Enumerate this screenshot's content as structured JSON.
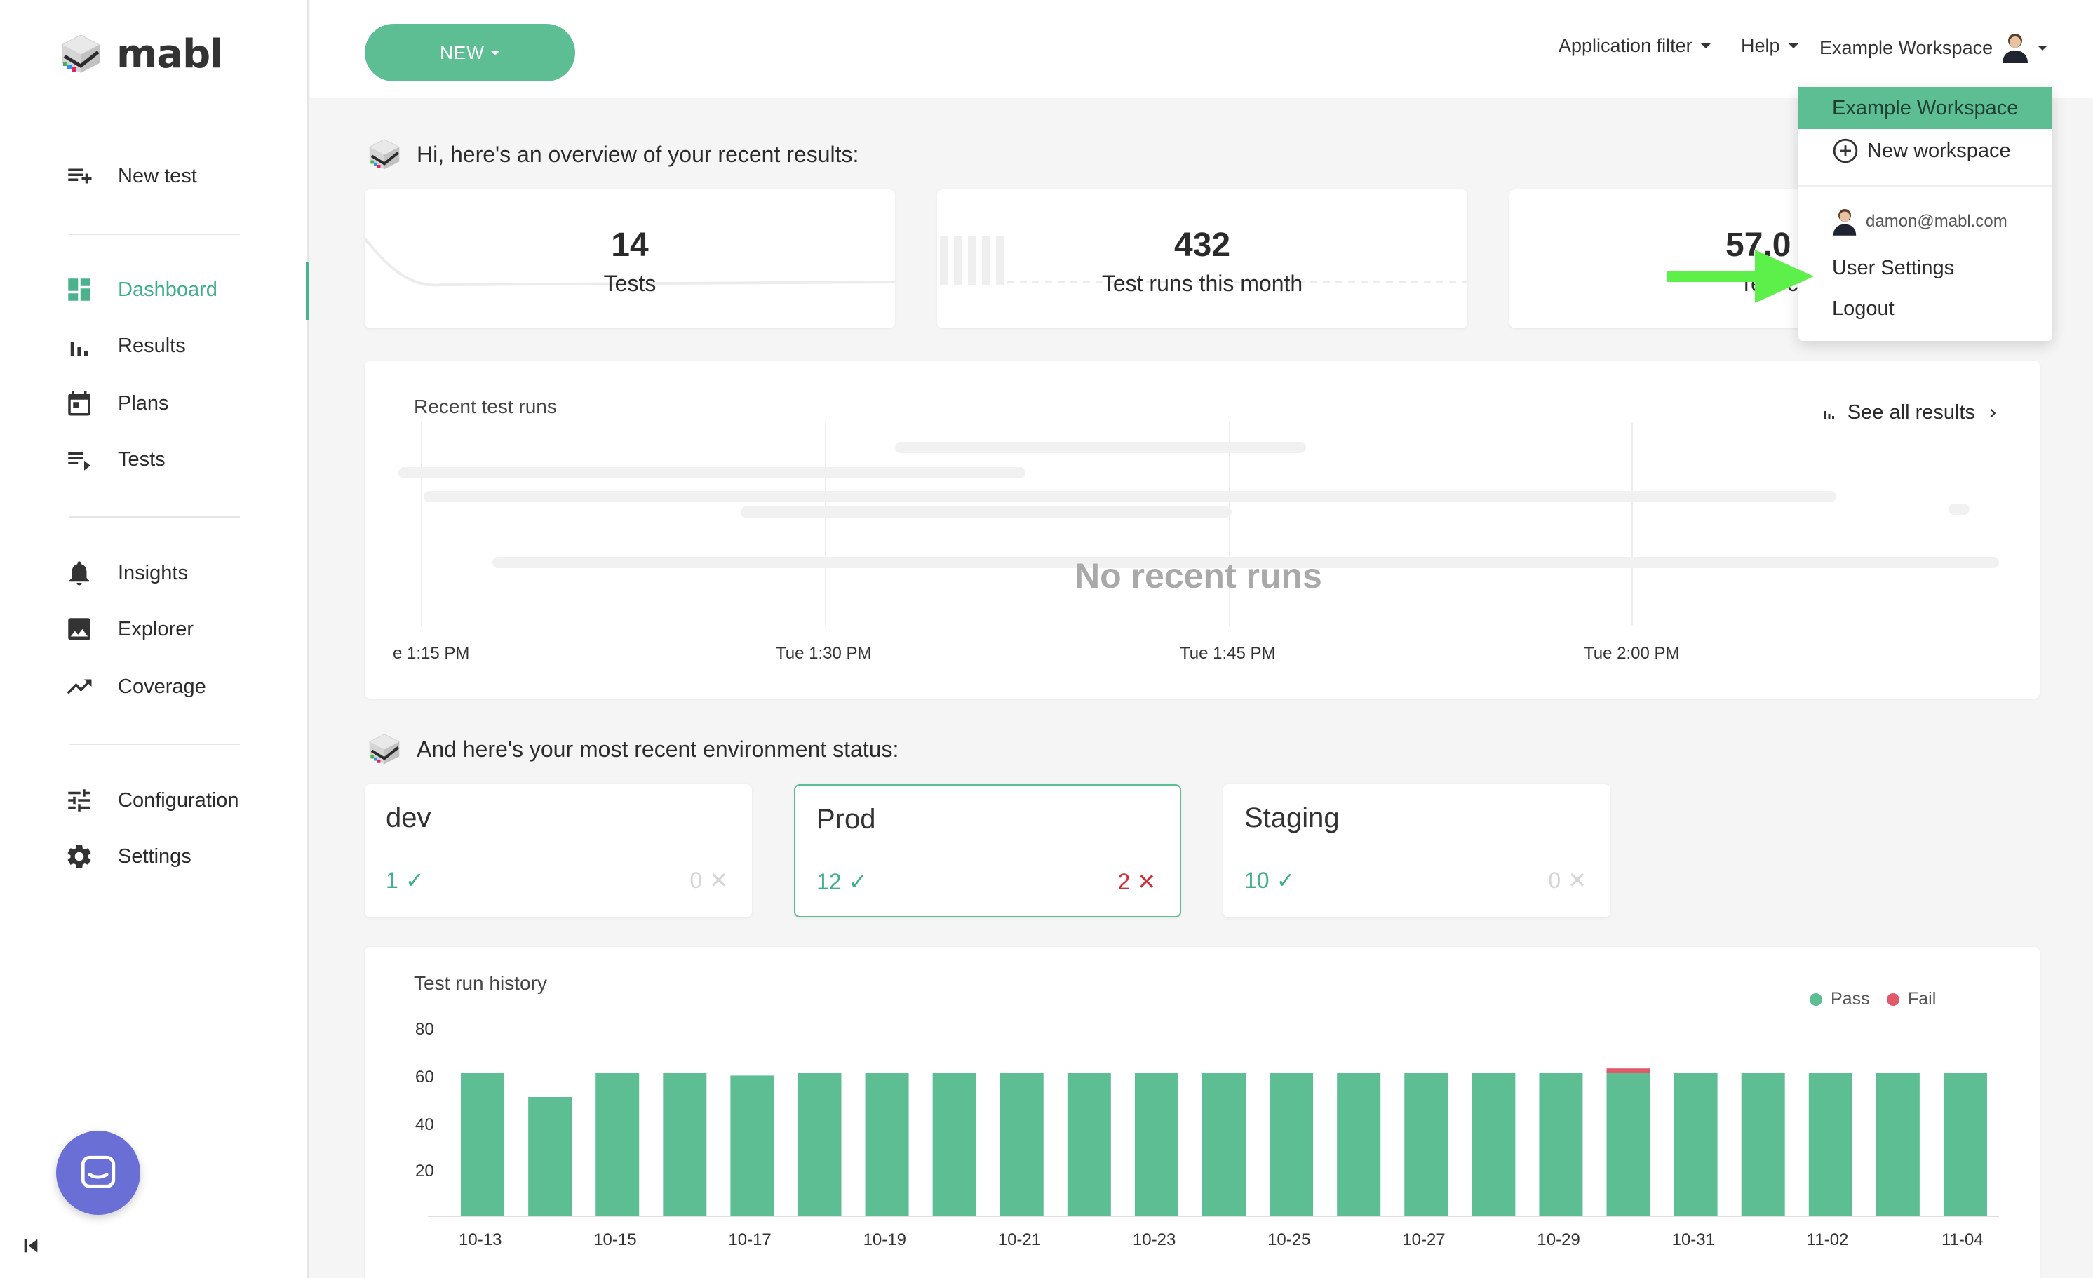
{
  "brand": {
    "name": "mabl"
  },
  "sidebar": {
    "items": [
      {
        "label": "New test",
        "icon": "playlist-add-icon"
      },
      {
        "label": "Dashboard",
        "icon": "dashboard-icon",
        "active": true
      },
      {
        "label": "Results",
        "icon": "bar-chart-icon"
      },
      {
        "label": "Plans",
        "icon": "calendar-icon"
      },
      {
        "label": "Tests",
        "icon": "playlist-play-icon"
      },
      {
        "label": "Insights",
        "icon": "bell-icon"
      },
      {
        "label": "Explorer",
        "icon": "image-icon"
      },
      {
        "label": "Coverage",
        "icon": "trending-up-icon"
      },
      {
        "label": "Configuration",
        "icon": "tune-icon"
      },
      {
        "label": "Settings",
        "icon": "gear-icon"
      }
    ]
  },
  "topbar": {
    "new_label": "NEW",
    "app_filter": "Application filter",
    "help": "Help",
    "workspace": "Example Workspace"
  },
  "dropdown": {
    "active_workspace": "Example Workspace",
    "new_workspace": "New workspace",
    "email": "damon@mabl.com",
    "user_settings": "User Settings",
    "logout": "Logout"
  },
  "overview": {
    "heading": "Hi, here's an overview of your recent results:",
    "stats": [
      {
        "value": "14",
        "label": "Tests"
      },
      {
        "value": "432",
        "label": "Test runs this month"
      },
      {
        "value": "57.0",
        "label": "Test c"
      }
    ]
  },
  "recent_runs": {
    "title": "Recent test runs",
    "see_all": "See all results",
    "empty": "No recent runs",
    "time_labels": [
      "e 1:15 PM",
      "Tue 1:30 PM",
      "Tue 1:45 PM",
      "Tue 2:00 PM"
    ]
  },
  "environments": {
    "heading": "And here's your most recent environment status:",
    "items": [
      {
        "name": "dev",
        "pass": "1",
        "fail": "0"
      },
      {
        "name": "Prod",
        "pass": "12",
        "fail": "2"
      },
      {
        "name": "Staging",
        "pass": "10",
        "fail": "0"
      }
    ]
  },
  "colors": {
    "accent": "#5dbd93",
    "pass": "#5dbd93",
    "fail": "#e05a6a",
    "arrow": "#5ef04a",
    "chat": "#6a6fd6"
  },
  "chart_data": {
    "type": "bar",
    "title": "Test run history",
    "categories": [
      "10-13",
      "10-14",
      "10-15",
      "10-16",
      "10-17",
      "10-18",
      "10-19",
      "10-20",
      "10-21",
      "10-22",
      "10-23",
      "10-24",
      "10-25",
      "10-26",
      "10-27",
      "10-28",
      "10-29",
      "10-30",
      "10-31",
      "11-01",
      "11-02",
      "11-03",
      "11-04"
    ],
    "x_tick_labels": [
      "10-13",
      "10-15",
      "10-17",
      "10-19",
      "10-21",
      "10-23",
      "10-25",
      "10-27",
      "10-29",
      "10-31",
      "11-02",
      "11-04"
    ],
    "series": [
      {
        "name": "Pass",
        "values": [
          60,
          50,
          60,
          60,
          59,
          60,
          60,
          60,
          60,
          60,
          60,
          60,
          60,
          60,
          60,
          60,
          60,
          60,
          60,
          60,
          60,
          60,
          60
        ]
      },
      {
        "name": "Fail",
        "values": [
          0,
          0,
          0,
          0,
          0,
          0,
          0,
          0,
          0,
          0,
          0,
          0,
          0,
          0,
          0,
          0,
          0,
          2,
          0,
          0,
          0,
          0,
          0
        ]
      }
    ],
    "yticks": [
      20,
      40,
      60,
      80
    ],
    "ylim": [
      0,
      80
    ],
    "legend": "top-right"
  }
}
